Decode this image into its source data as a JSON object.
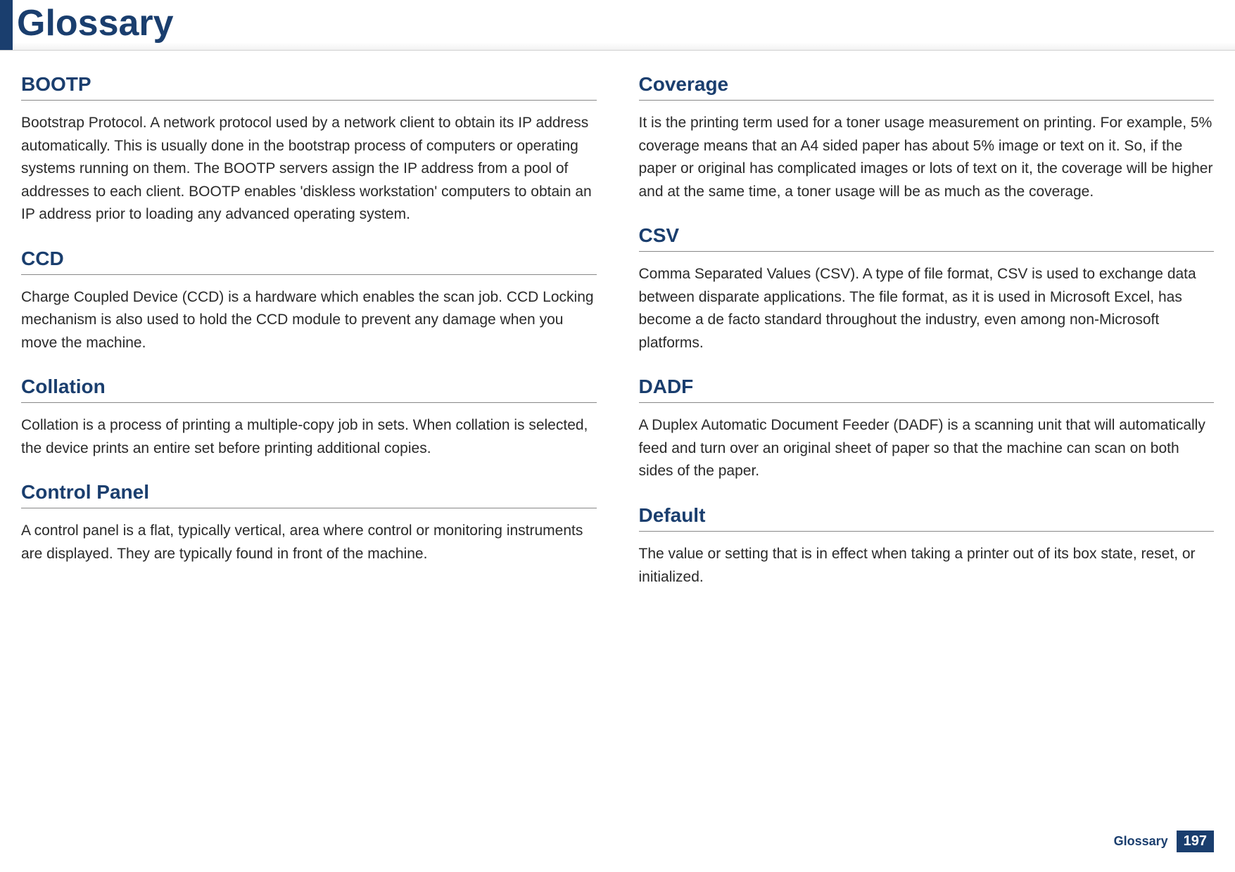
{
  "header": {
    "title": "Glossary"
  },
  "left": {
    "e0": {
      "term": "BOOTP",
      "def": "Bootstrap Protocol. A network protocol used by a network client to obtain its IP address automatically. This is usually done in the bootstrap process of computers or operating systems running on them. The BOOTP servers assign the IP address from a pool of addresses to each client. BOOTP enables 'diskless workstation' computers to obtain an IP address prior to loading any advanced operating system."
    },
    "e1": {
      "term": "CCD",
      "def": "Charge Coupled Device (CCD) is a hardware which enables the scan job. CCD Locking mechanism is also used to hold the CCD module to prevent any damage when you move the machine."
    },
    "e2": {
      "term": "Collation",
      "def": "Collation is a process of printing a multiple-copy job in sets. When collation is selected, the device prints an entire set before printing additional copies."
    },
    "e3": {
      "term": "Control Panel",
      "def": "A control panel is a flat, typically vertical, area where control or monitoring instruments are displayed. They are typically found in front of the machine."
    }
  },
  "right": {
    "e0": {
      "term": "Coverage",
      "def": "It is the printing term used for a toner usage measurement on printing. For example, 5% coverage means that an A4 sided paper has about 5% image or text on it. So, if the paper or original has complicated images or lots of text on it, the coverage will be higher and at the same time, a toner usage will be as much as the coverage."
    },
    "e1": {
      "term": "CSV",
      "def": "Comma Separated Values (CSV). A type of file format, CSV is used to exchange data between disparate applications. The file format, as it is used in Microsoft Excel, has become a de facto standard throughout the industry, even among non-Microsoft platforms."
    },
    "e2": {
      "term": "DADF",
      "def": "A Duplex Automatic Document Feeder (DADF) is a scanning unit that will automatically feed and turn over an original sheet of paper so that the machine can scan on both sides of the paper."
    },
    "e3": {
      "term": "Default",
      "def": "The value or setting that is in effect when taking a printer out of its box state, reset, or initialized."
    }
  },
  "footer": {
    "label": "Glossary",
    "page": "197"
  },
  "colors": {
    "brand": "#1a3e6e",
    "rule": "#888888",
    "text": "#2a2a2a"
  }
}
